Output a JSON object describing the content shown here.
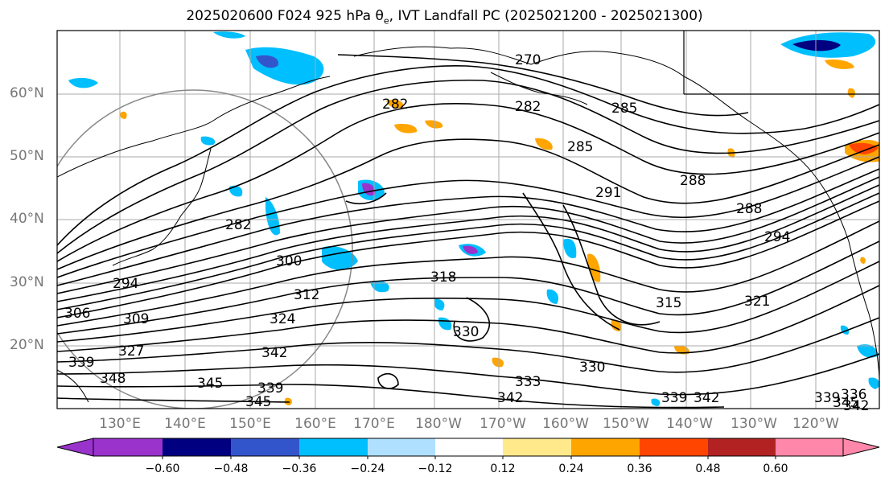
{
  "title": {
    "prefix": "2025020600 F024 925 hPa ",
    "theta": "θ",
    "theta_sub": "e",
    "suffix": ", IVT Landfall PC (2025021200 - 2025021300)"
  },
  "map": {
    "lat_labels": [
      "60°N",
      "50°N",
      "40°N",
      "30°N",
      "20°N"
    ],
    "lon_labels": [
      "130°E",
      "140°E",
      "150°E",
      "160°E",
      "170°E",
      "180°W",
      "170°W",
      "160°W",
      "150°W",
      "140°W",
      "130°W",
      "120°W"
    ],
    "contour_labels": [
      "270",
      "282",
      "285",
      "288",
      "291",
      "288",
      "282",
      "294",
      "300",
      "306",
      "309",
      "312",
      "318",
      "315",
      "321",
      "324",
      "327",
      "330",
      "333",
      "339",
      "342",
      "345",
      "348",
      "339",
      "336",
      "342",
      "345"
    ],
    "colors": {
      "purple": "#9933cc",
      "navy": "#000080",
      "blue": "#3355cc",
      "cyan": "#00bfff",
      "light_cyan": "#b0e0ff",
      "yellow": "#ffe98a",
      "orange": "#ffa500",
      "red_orange": "#ff4500",
      "firebrick": "#b22222",
      "pink": "#ff88aa"
    }
  },
  "colorbar": {
    "ticks": [
      "−0.60",
      "−0.48",
      "−0.36",
      "−0.24",
      "−0.12",
      "0.12",
      "0.24",
      "0.36",
      "0.48",
      "0.60"
    ],
    "colors": [
      "#9933cc",
      "#000080",
      "#3355cc",
      "#00bfff",
      "#b0e0ff",
      "#ffffff",
      "#ffe98a",
      "#ffa500",
      "#ff4500",
      "#b22222",
      "#ff88aa"
    ]
  }
}
